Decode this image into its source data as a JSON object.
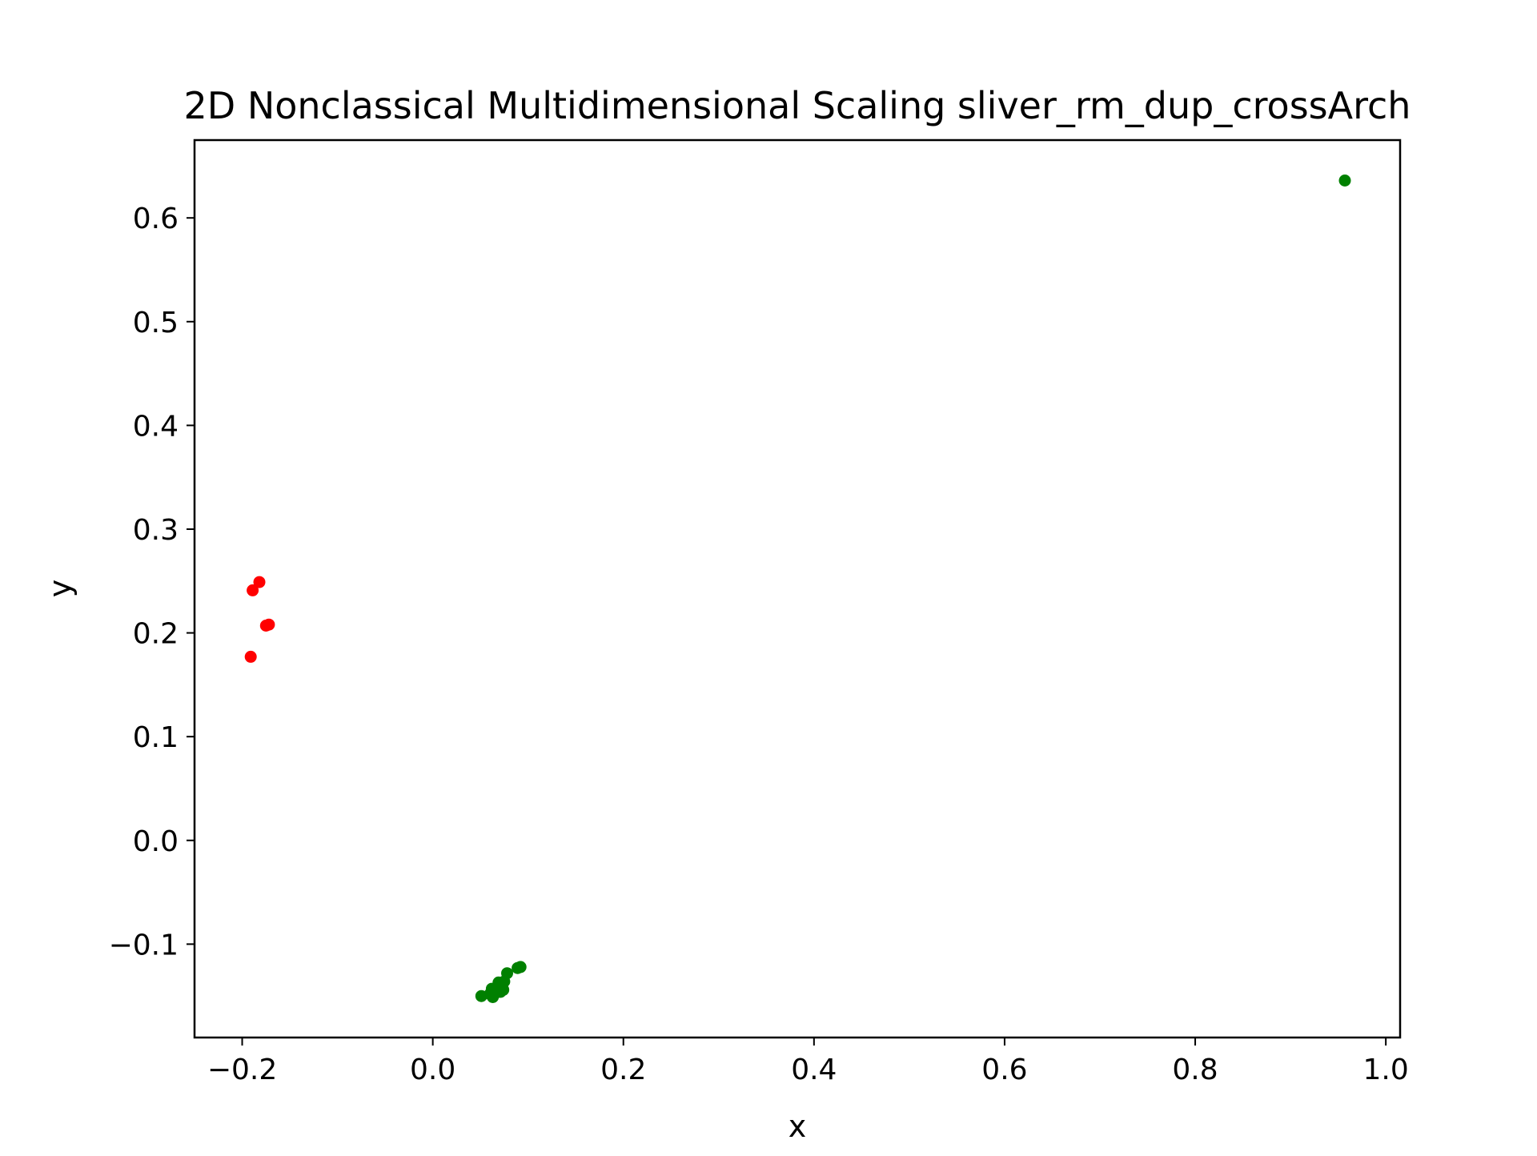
{
  "chart_data": {
    "type": "scatter",
    "title": "2D Nonclassical Multidimensional Scaling sliver_rm_dup_crossArch",
    "xlabel": "x",
    "ylabel": "y",
    "xlim": [
      -0.25,
      1.015
    ],
    "ylim": [
      -0.19,
      0.675
    ],
    "x_ticks": [
      {
        "value": -0.2,
        "label": "−0.2"
      },
      {
        "value": 0.0,
        "label": "0.0"
      },
      {
        "value": 0.2,
        "label": "0.2"
      },
      {
        "value": 0.4,
        "label": "0.4"
      },
      {
        "value": 0.6,
        "label": "0.6"
      },
      {
        "value": 0.8,
        "label": "0.8"
      },
      {
        "value": 1.0,
        "label": "1.0"
      }
    ],
    "y_ticks": [
      {
        "value": -0.1,
        "label": "−0.1"
      },
      {
        "value": 0.0,
        "label": "0.0"
      },
      {
        "value": 0.1,
        "label": "0.1"
      },
      {
        "value": 0.2,
        "label": "0.2"
      },
      {
        "value": 0.3,
        "label": "0.3"
      },
      {
        "value": 0.4,
        "label": "0.4"
      },
      {
        "value": 0.5,
        "label": "0.5"
      },
      {
        "value": 0.6,
        "label": "0.6"
      }
    ],
    "grid": false,
    "series": [
      {
        "color": "#ff0000",
        "points": [
          {
            "x": -0.182,
            "y": 0.249
          },
          {
            "x": -0.189,
            "y": 0.241
          },
          {
            "x": -0.175,
            "y": 0.207
          },
          {
            "x": -0.172,
            "y": 0.208
          },
          {
            "x": -0.191,
            "y": 0.177
          }
        ]
      },
      {
        "color": "#008000",
        "points": [
          {
            "x": 0.957,
            "y": 0.636
          },
          {
            "x": 0.092,
            "y": -0.122
          },
          {
            "x": 0.089,
            "y": -0.123
          },
          {
            "x": 0.078,
            "y": -0.128
          },
          {
            "x": 0.075,
            "y": -0.136
          },
          {
            "x": 0.069,
            "y": -0.137
          },
          {
            "x": 0.073,
            "y": -0.141
          },
          {
            "x": 0.074,
            "y": -0.144
          },
          {
            "x": 0.071,
            "y": -0.146
          },
          {
            "x": 0.062,
            "y": -0.143
          },
          {
            "x": 0.066,
            "y": -0.147
          },
          {
            "x": 0.06,
            "y": -0.148
          },
          {
            "x": 0.051,
            "y": -0.15
          },
          {
            "x": 0.063,
            "y": -0.151
          }
        ]
      }
    ]
  }
}
